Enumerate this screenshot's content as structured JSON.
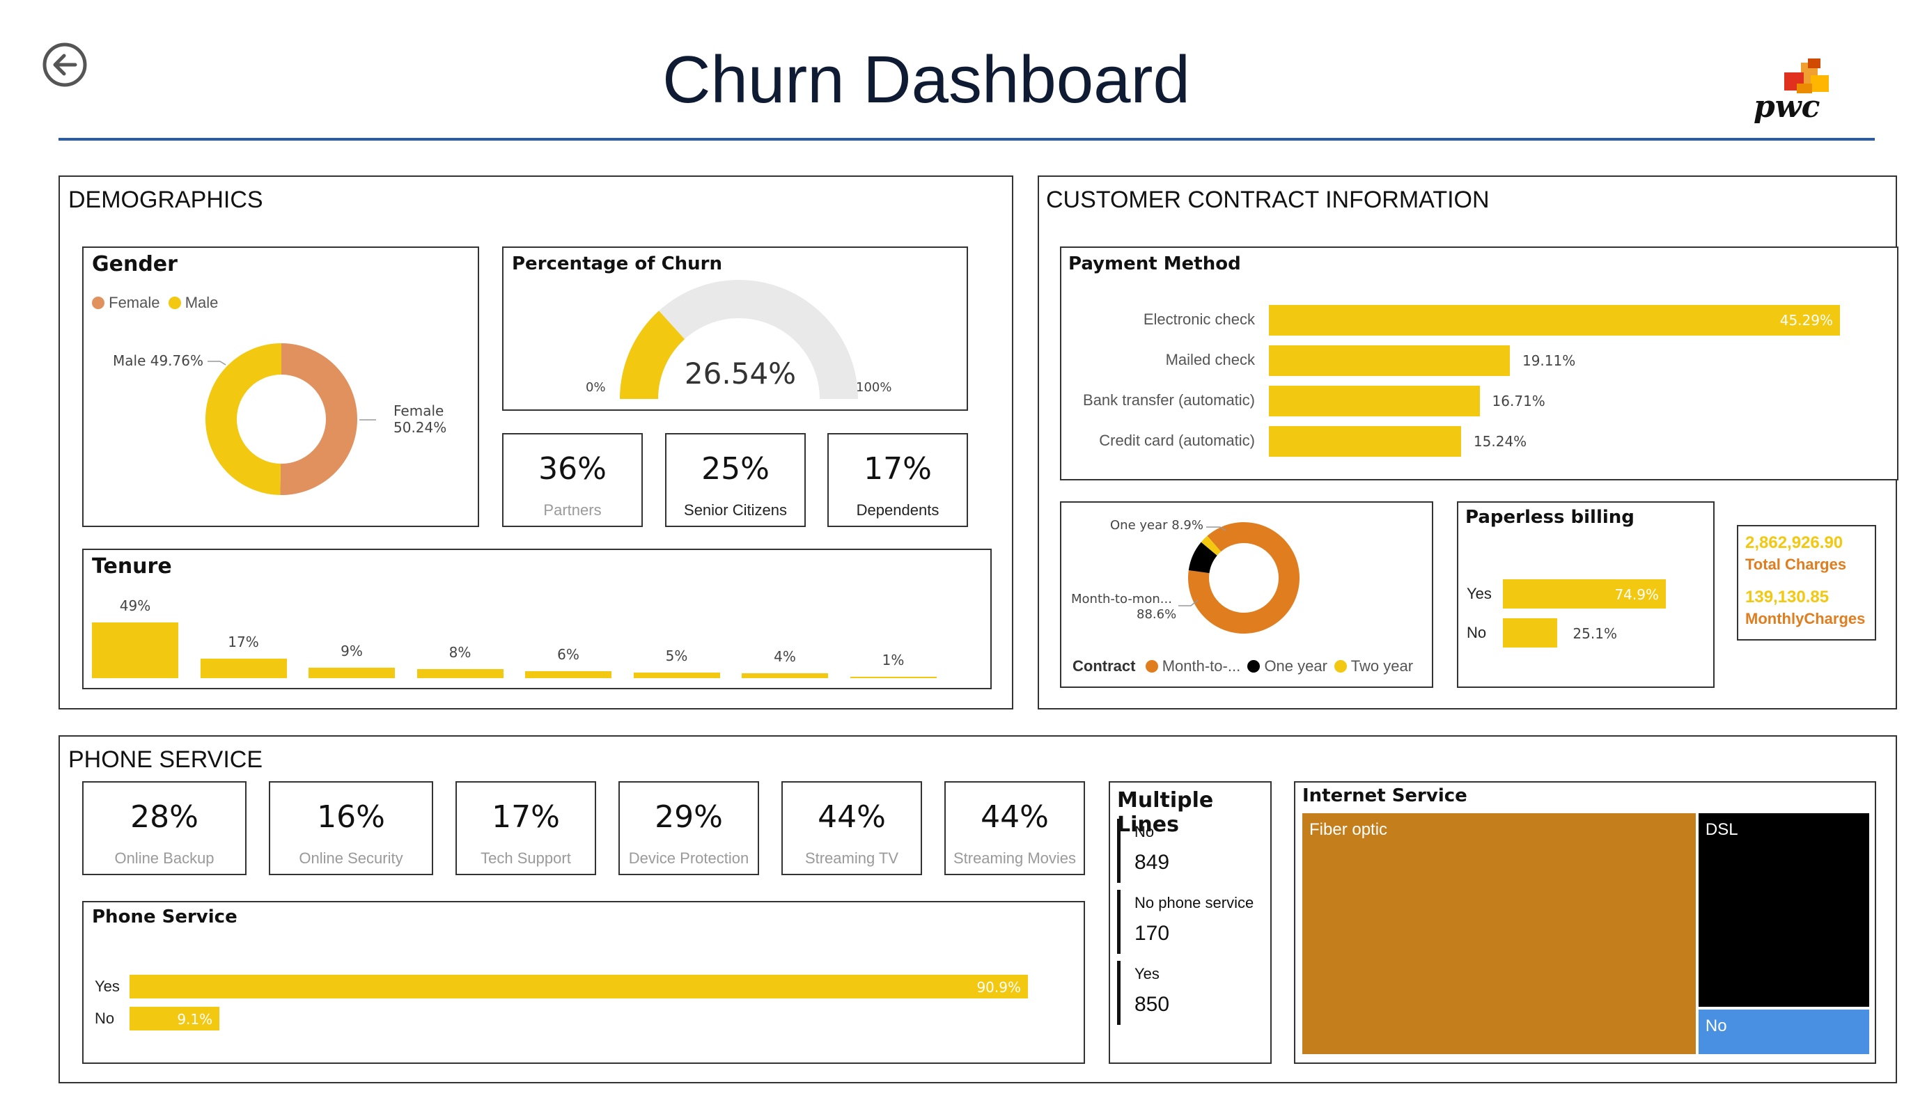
{
  "header": {
    "title": "Churn Dashboard",
    "logo_text": "pwc"
  },
  "colors": {
    "yellow": "#F2C811",
    "orange_gender": "#E0915E",
    "orange_contract": "#E07D1F",
    "gold": "#C47F1C",
    "blue": "#4A90E2",
    "gauge_bg": "#E9E9E9",
    "rule": "#2F5C9E"
  },
  "demographics": {
    "title": "DEMOGRAPHICS",
    "gender": {
      "title": "Gender",
      "legend": [
        {
          "name": "Female",
          "color": "#E0915E"
        },
        {
          "name": "Male",
          "color": "#F2C811"
        }
      ],
      "male_label": "Male 49.76%",
      "female_label_name": "Female",
      "female_label_value": "50.24%"
    },
    "churn_gauge": {
      "title": "Percentage of Churn",
      "value": 26.54,
      "value_text": "26.54%",
      "min_text": "0%",
      "max_text": "100%"
    },
    "kpis": [
      {
        "value": "36%",
        "label": "Partners",
        "label_color": "#9a9a9a"
      },
      {
        "value": "25%",
        "label": "Senior Citizens",
        "label_color": "#222222"
      },
      {
        "value": "17%",
        "label": "Dependents",
        "label_color": "#222222"
      }
    ],
    "tenure": {
      "title": "Tenure"
    }
  },
  "contract": {
    "title": "CUSTOMER CONTRACT INFORMATION",
    "payment": {
      "title": "Payment Method"
    },
    "contract_donut": {
      "legend_title": "Contract",
      "legend": [
        {
          "name": "Month-to-...",
          "color": "#E07D1F"
        },
        {
          "name": "One year",
          "color": "#000000"
        },
        {
          "name": "Two year",
          "color": "#F2C811"
        }
      ],
      "one_year_label": "One year 8.9%",
      "mtm_label_name": "Month-to-mon...",
      "mtm_label_value": "88.6%"
    },
    "paperless": {
      "title": "Paperless billing"
    },
    "totals": {
      "total_value": "2,862,926.90",
      "total_label": "Total Charges",
      "monthly_value": "139,130.85",
      "monthly_label": "MonthlyCharges"
    }
  },
  "phone": {
    "title": "PHONE SERVICE",
    "kpis": [
      {
        "value": "28%",
        "label": "Online Backup"
      },
      {
        "value": "16%",
        "label": "Online Security"
      },
      {
        "value": "17%",
        "label": "Tech Support"
      },
      {
        "value": "29%",
        "label": "Device Protection"
      },
      {
        "value": "44%",
        "label": "Streaming TV"
      },
      {
        "value": "44%",
        "label": "Streaming Movies"
      }
    ],
    "phone_service": {
      "title": "Phone Service"
    },
    "multiple_lines": {
      "title": "Multiple Lines",
      "items": [
        {
          "label": "No",
          "value": "849"
        },
        {
          "label": "No phone service",
          "value": "170"
        },
        {
          "label": "Yes",
          "value": "850"
        }
      ]
    },
    "internet": {
      "title": "Internet Service"
    }
  },
  "chart_data": [
    {
      "id": "gender",
      "type": "pie",
      "title": "Gender",
      "categories": [
        "Female",
        "Male"
      ],
      "values": [
        50.24,
        49.76
      ]
    },
    {
      "id": "churn_gauge",
      "type": "gauge",
      "title": "Percentage of Churn",
      "value": 26.54,
      "min": 0,
      "max": 100
    },
    {
      "id": "tenure",
      "type": "bar",
      "title": "Tenure",
      "values": [
        49,
        17,
        9,
        8,
        6,
        5,
        4,
        1
      ],
      "labels": [
        "49%",
        "17%",
        "9%",
        "8%",
        "6%",
        "5%",
        "4%",
        "1%"
      ]
    },
    {
      "id": "payment",
      "type": "bar",
      "orientation": "horizontal",
      "title": "Payment Method",
      "categories": [
        "Electronic check",
        "Mailed check",
        "Bank transfer (automatic)",
        "Credit card (automatic)"
      ],
      "values": [
        45.29,
        19.11,
        16.71,
        15.24
      ],
      "labels": [
        "45.29%",
        "19.11%",
        "16.71%",
        "15.24%"
      ]
    },
    {
      "id": "contract",
      "type": "pie",
      "title": "Contract",
      "categories": [
        "Month-to-month",
        "One year",
        "Two year"
      ],
      "values": [
        88.6,
        8.9,
        2.5
      ]
    },
    {
      "id": "paperless",
      "type": "bar",
      "orientation": "horizontal",
      "title": "Paperless billing",
      "categories": [
        "Yes",
        "No"
      ],
      "values": [
        74.9,
        25.1
      ],
      "labels": [
        "74.9%",
        "25.1%"
      ]
    },
    {
      "id": "phone_service",
      "type": "bar",
      "orientation": "horizontal",
      "title": "Phone Service",
      "categories": [
        "Yes",
        "No"
      ],
      "values": [
        90.9,
        9.1
      ],
      "labels": [
        "90.9%",
        "9.1%"
      ]
    },
    {
      "id": "internet",
      "type": "treemap",
      "title": "Internet Service",
      "categories": [
        "Fiber optic",
        "DSL",
        "No"
      ],
      "values": [
        69.4,
        24.6,
        6.0
      ]
    }
  ]
}
